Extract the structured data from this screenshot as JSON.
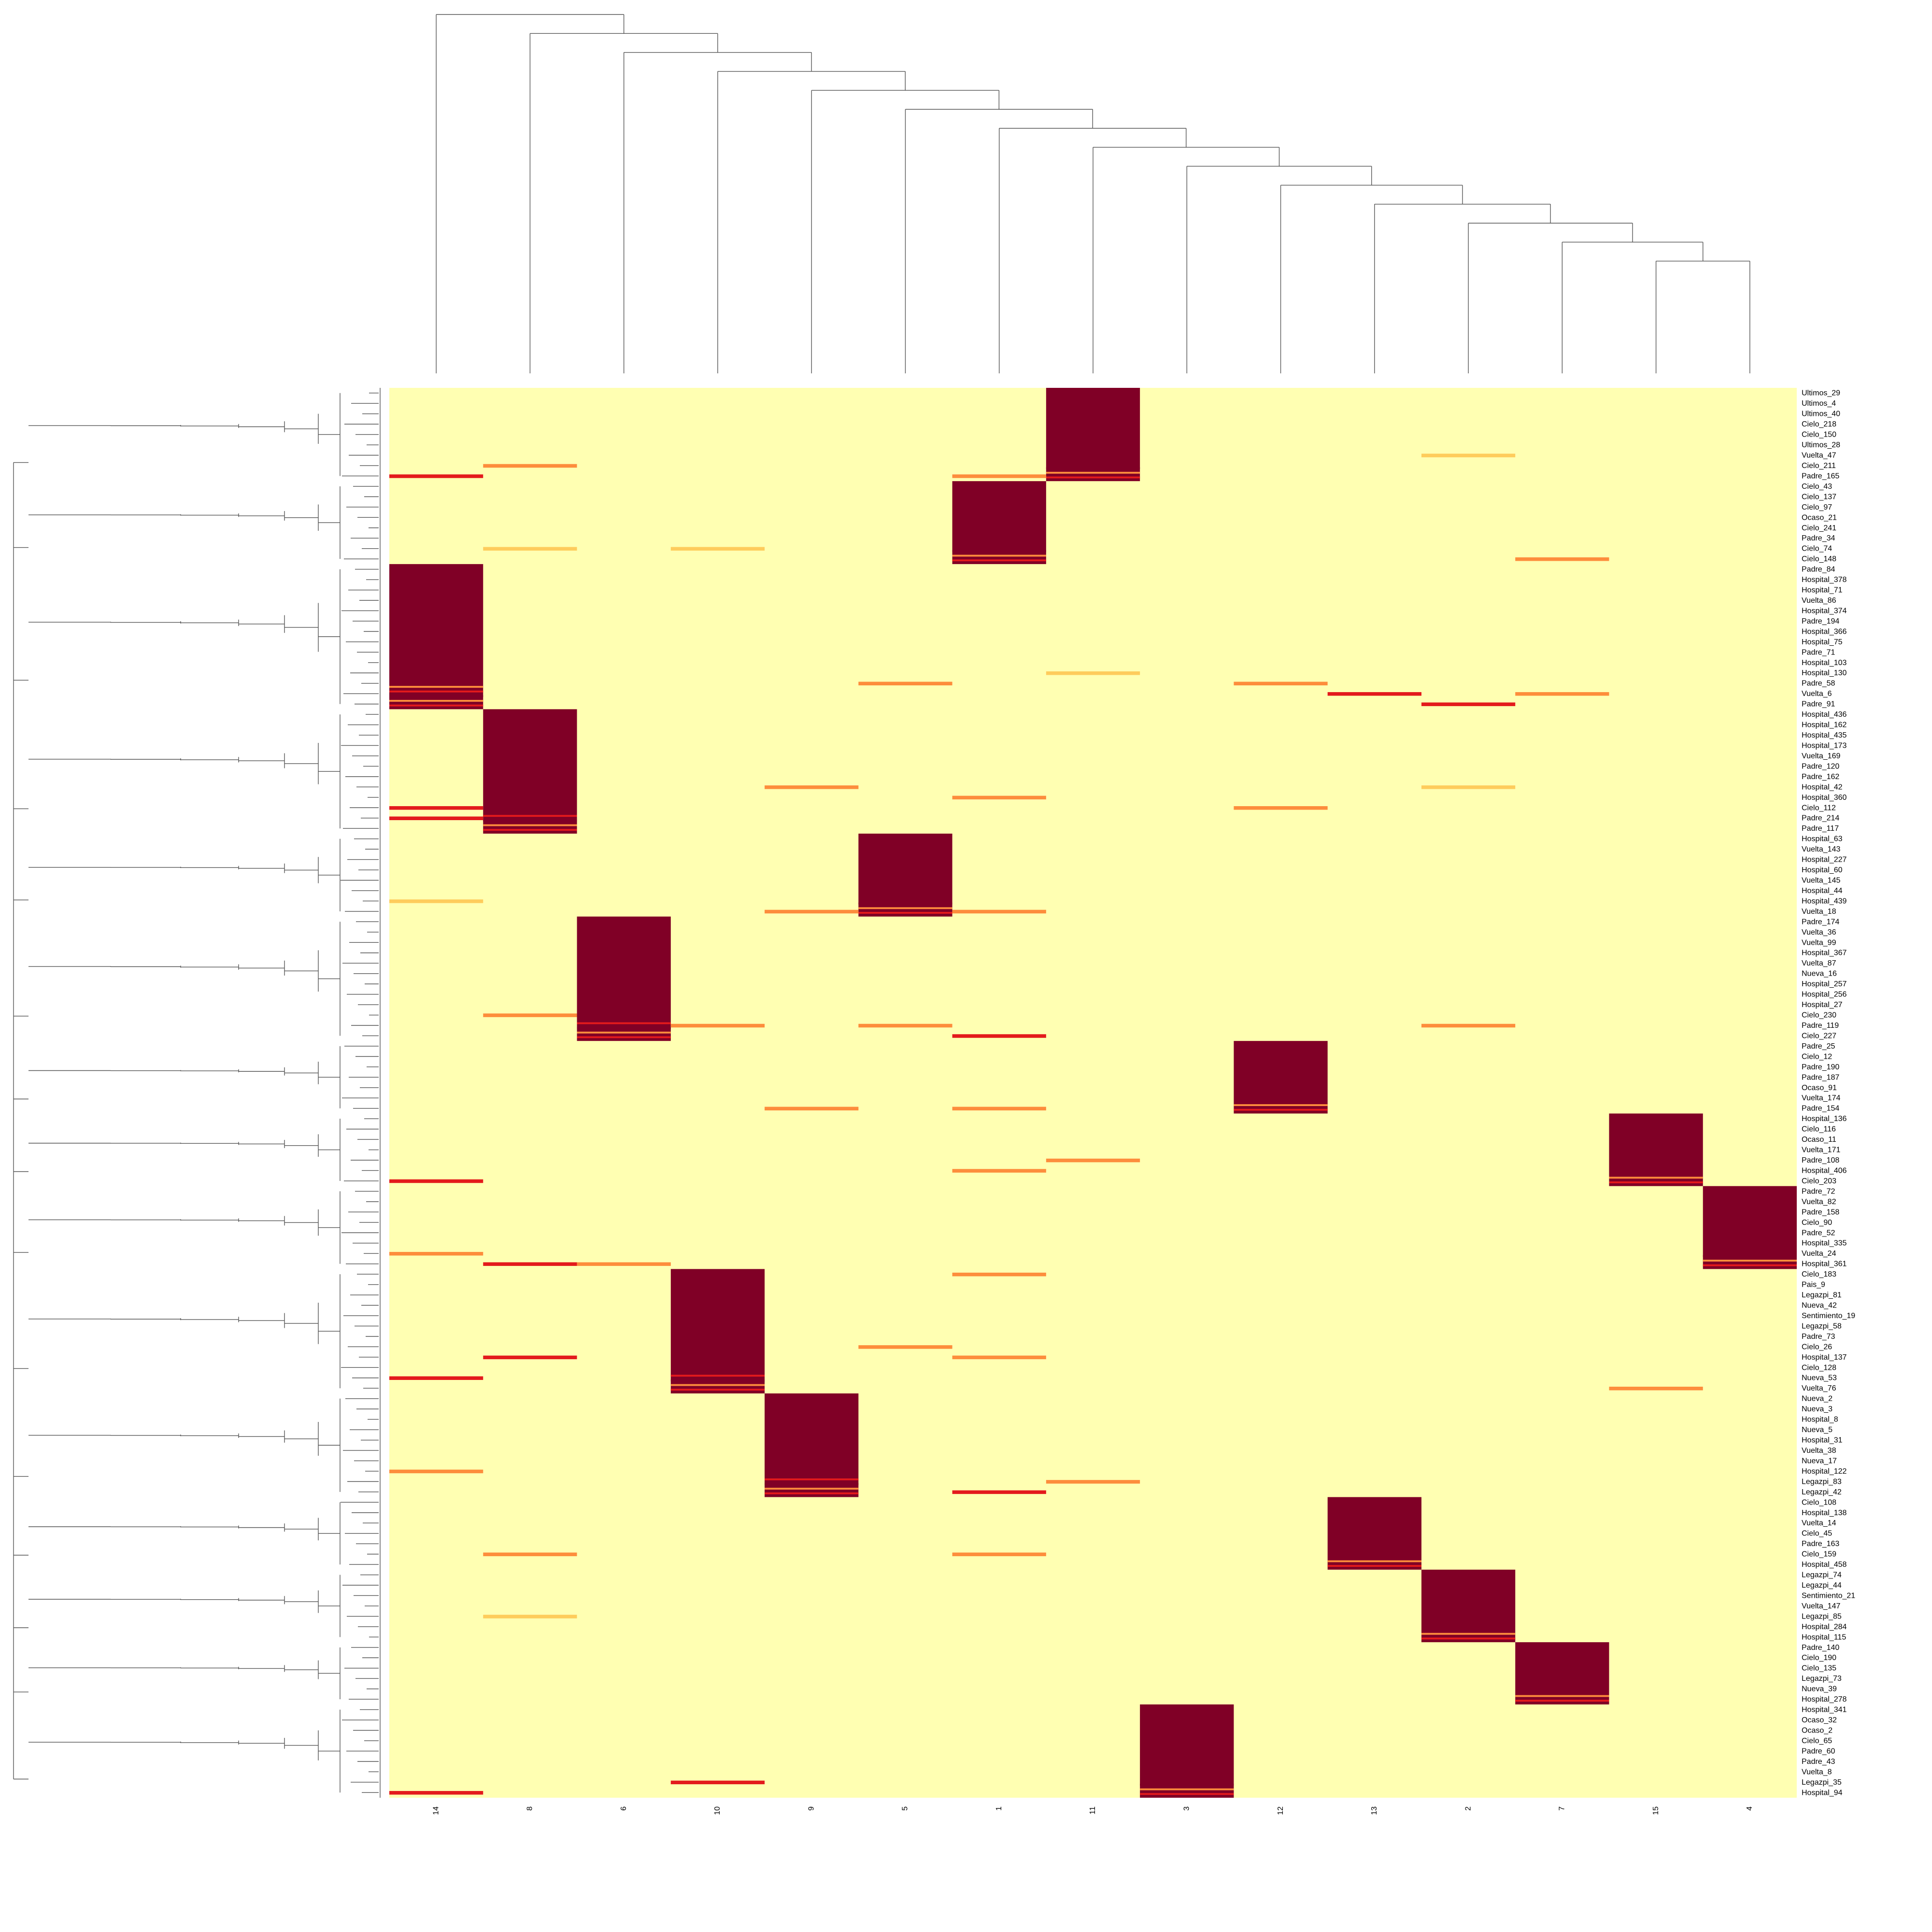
{
  "chart_data": {
    "type": "heatmap",
    "title": "",
    "xlabel": "",
    "ylabel": "",
    "dendrograms": {
      "rows": true,
      "columns": true
    },
    "legend": "none",
    "colors": {
      "background": "#ffffb2",
      "low": "#ffffb2",
      "mid_low": "#fecc5c",
      "mid": "#fd8d3c",
      "mid_high": "#e31a1c",
      "high": "#800026"
    },
    "value_range": [
      0,
      1
    ],
    "columns": [
      "14",
      "8",
      "6",
      "10",
      "9",
      "5",
      "1",
      "11",
      "3",
      "12",
      "13",
      "2",
      "7",
      "15",
      "4"
    ],
    "row_labels": [
      "Ultimos_29",
      "Ultimos_4",
      "Ultimos_40",
      "Cielo_218",
      "Cielo_150",
      "Ultimos_28",
      "Vuelta_47",
      "Cielo_211",
      "Padre_165",
      "Cielo_43",
      "Cielo_137",
      "Cielo_97",
      "Ocaso_21",
      "Cielo_241",
      "Padre_34",
      "Cielo_74",
      "Cielo_148",
      "Padre_84",
      "Hospital_378",
      "Hospital_71",
      "Vuelta_86",
      "Hospital_374",
      "Padre_194",
      "Hospital_366",
      "Hospital_75",
      "Padre_71",
      "Hospital_103",
      "Hospital_130",
      "Padre_58",
      "Vuelta_6",
      "Padre_91",
      "Hospital_436",
      "Hospital_162",
      "Hospital_435",
      "Hospital_173",
      "Vuelta_169",
      "Padre_120",
      "Padre_162",
      "Hospital_42",
      "Hospital_360",
      "Cielo_112",
      "Padre_214",
      "Padre_117",
      "Hospital_63",
      "Vuelta_143",
      "Hospital_227",
      "Hospital_60",
      "Vuelta_145",
      "Hospital_44",
      "Hospital_439",
      "Vuelta_18",
      "Padre_174",
      "Vuelta_36",
      "Vuelta_99",
      "Hospital_367",
      "Vuelta_87",
      "Nueva_16",
      "Hospital_257",
      "Hospital_256",
      "Hospital_27",
      "Cielo_230",
      "Padre_119",
      "Cielo_227",
      "Padre_25",
      "Cielo_12",
      "Padre_190",
      "Padre_187",
      "Ocaso_91",
      "Vuelta_174",
      "Padre_154",
      "Hospital_136",
      "Cielo_116",
      "Ocaso_11",
      "Vuelta_171",
      "Padre_108",
      "Hospital_406",
      "Cielo_203",
      "Padre_72",
      "Vuelta_82",
      "Padre_158",
      "Cielo_90",
      "Padre_52",
      "Hospital_335",
      "Vuelta_24",
      "Hospital_361",
      "Cielo_183",
      "Pais_9",
      "Legazpi_81",
      "Nueva_42",
      "Sentimiento_19",
      "Legazpi_58",
      "Padre_73",
      "Cielo_26",
      "Hospital_137",
      "Cielo_128",
      "Nueva_53",
      "Vuelta_76",
      "Nueva_2",
      "Nueva_3",
      "Hospital_8",
      "Nueva_5",
      "Hospital_31",
      "Vuelta_38",
      "Nueva_17",
      "Hospital_122",
      "Legazpi_83",
      "Legazpi_42",
      "Cielo_108",
      "Hospital_138",
      "Vuelta_14",
      "Cielo_45",
      "Padre_163",
      "Cielo_159",
      "Hospital_458",
      "Legazpi_74",
      "Legazpi_44",
      "Sentimiento_21",
      "Vuelta_147",
      "Legazpi_85",
      "Hospital_284",
      "Hospital_115",
      "Padre_140",
      "Cielo_190",
      "Cielo_135",
      "Legazpi_73",
      "Nueva_39",
      "Hospital_278",
      "Hospital_341",
      "Ocaso_32",
      "Ocaso_2",
      "Cielo_65",
      "Padre_60",
      "Padre_43",
      "Vuelta_8",
      "Legazpi_35",
      "Hospital_94"
    ],
    "row_clusters": [
      {
        "cluster": "11",
        "rows": [
          0,
          8
        ]
      },
      {
        "cluster": "1",
        "rows": [
          9,
          16
        ]
      },
      {
        "cluster": "14",
        "rows": [
          17,
          30
        ]
      },
      {
        "cluster": "8",
        "rows": [
          31,
          42
        ]
      },
      {
        "cluster": "5",
        "rows": [
          43,
          50
        ]
      },
      {
        "cluster": "6",
        "rows": [
          51,
          62
        ]
      },
      {
        "cluster": "12",
        "rows": [
          63,
          69
        ]
      },
      {
        "cluster": "15",
        "rows": [
          70,
          76
        ]
      },
      {
        "cluster": "4",
        "rows": [
          77,
          84
        ]
      },
      {
        "cluster": "10",
        "rows": [
          85,
          96
        ]
      },
      {
        "cluster": "9",
        "rows": [
          97,
          106
        ]
      },
      {
        "cluster": "13",
        "rows": [
          107,
          113
        ]
      },
      {
        "cluster": "2",
        "rows": [
          114,
          120
        ]
      },
      {
        "cluster": "7",
        "rows": [
          121,
          126
        ]
      },
      {
        "cluster": "3",
        "rows": [
          127,
          135
        ]
      }
    ],
    "secondary_cells": [
      {
        "row": 8,
        "col": "14",
        "value": 0.65
      },
      {
        "row": 8,
        "col": "1",
        "value": 0.6
      },
      {
        "row": 7,
        "col": "8",
        "value": 0.55
      },
      {
        "row": 6,
        "col": "2",
        "value": 0.45
      },
      {
        "row": 16,
        "col": "7",
        "value": 0.5
      },
      {
        "row": 15,
        "col": "8",
        "value": 0.4
      },
      {
        "row": 15,
        "col": "10",
        "value": 0.4
      },
      {
        "row": 27,
        "col": "11",
        "value": 0.45
      },
      {
        "row": 28,
        "col": "5",
        "value": 0.6
      },
      {
        "row": 28,
        "col": "12",
        "value": 0.6
      },
      {
        "row": 29,
        "col": "13",
        "value": 0.65
      },
      {
        "row": 30,
        "col": "2",
        "value": 0.8
      },
      {
        "row": 29,
        "col": "7",
        "value": 0.55
      },
      {
        "row": 40,
        "col": "14",
        "value": 0.8
      },
      {
        "row": 41,
        "col": "14",
        "value": 0.7
      },
      {
        "row": 38,
        "col": "9",
        "value": 0.6
      },
      {
        "row": 39,
        "col": "1",
        "value": 0.6
      },
      {
        "row": 38,
        "col": "2",
        "value": 0.45
      },
      {
        "row": 40,
        "col": "12",
        "value": 0.6
      },
      {
        "row": 49,
        "col": "14",
        "value": 0.45
      },
      {
        "row": 50,
        "col": "1",
        "value": 0.6
      },
      {
        "row": 50,
        "col": "9",
        "value": 0.6
      },
      {
        "row": 60,
        "col": "8",
        "value": 0.6
      },
      {
        "row": 61,
        "col": "10",
        "value": 0.6
      },
      {
        "row": 61,
        "col": "5",
        "value": 0.6
      },
      {
        "row": 62,
        "col": "1",
        "value": 0.7
      },
      {
        "row": 61,
        "col": "2",
        "value": 0.6
      },
      {
        "row": 69,
        "col": "1",
        "value": 0.55
      },
      {
        "row": 69,
        "col": "9",
        "value": 0.6
      },
      {
        "row": 76,
        "col": "14",
        "value": 0.7
      },
      {
        "row": 75,
        "col": "1",
        "value": 0.6
      },
      {
        "row": 74,
        "col": "11",
        "value": 0.6
      },
      {
        "row": 84,
        "col": "8",
        "value": 0.7
      },
      {
        "row": 84,
        "col": "6",
        "value": 0.6
      },
      {
        "row": 83,
        "col": "14",
        "value": 0.5
      },
      {
        "row": 85,
        "col": "1",
        "value": 0.6
      },
      {
        "row": 95,
        "col": "14",
        "value": 0.7
      },
      {
        "row": 93,
        "col": "8",
        "value": 0.7
      },
      {
        "row": 93,
        "col": "1",
        "value": 0.6
      },
      {
        "row": 92,
        "col": "5",
        "value": 0.5
      },
      {
        "row": 96,
        "col": "15",
        "value": 0.6
      },
      {
        "row": 106,
        "col": "1",
        "value": 0.7
      },
      {
        "row": 105,
        "col": "11",
        "value": 0.6
      },
      {
        "row": 104,
        "col": "14",
        "value": 0.5
      },
      {
        "row": 112,
        "col": "8",
        "value": 0.6
      },
      {
        "row": 112,
        "col": "1",
        "value": 0.6
      },
      {
        "row": 118,
        "col": "8",
        "value": 0.45
      },
      {
        "row": 135,
        "col": "14",
        "value": 0.75
      },
      {
        "row": 134,
        "col": "10",
        "value": 0.65
      }
    ]
  }
}
